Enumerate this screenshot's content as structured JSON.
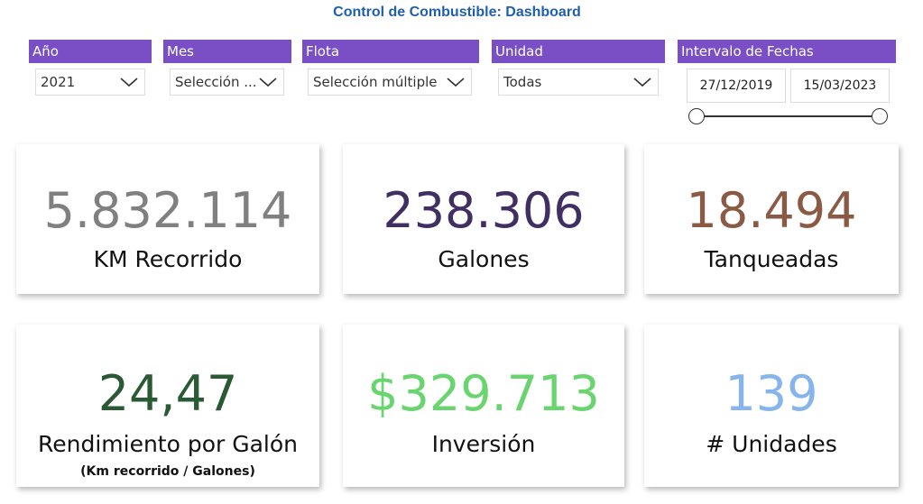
{
  "title": "Control de Combustible: Dashboard",
  "filters": {
    "anio": {
      "label": "Año",
      "value": "2021"
    },
    "mes": {
      "label": "Mes",
      "value": "Selección ..."
    },
    "flota": {
      "label": "Flota",
      "value": "Selección múltiple"
    },
    "unidad": {
      "label": "Unidad",
      "value": "Todas"
    },
    "intervalo": {
      "label": "Intervalo de Fechas",
      "start": "27/12/2019",
      "end": "15/03/2023",
      "range_fraction": [
        0,
        1
      ]
    }
  },
  "kpis": {
    "km": {
      "value": "5.832.114",
      "label": "KM Recorrido",
      "color": "#808080"
    },
    "galones": {
      "value": "238.306",
      "label": "Galones",
      "color": "#3f2f63"
    },
    "tanqueadas": {
      "value": "18.494",
      "label": "Tanqueadas",
      "color": "#8a5a44"
    },
    "rendimiento": {
      "value": "24,47",
      "label": "Rendimiento por Galón",
      "sublabel": "(Km recorrido / Galones)",
      "color": "#2a5a34"
    },
    "inversion": {
      "value": "$329.713",
      "label": "Inversión",
      "color": "#6ad46e"
    },
    "unidades": {
      "value": "139",
      "label": "# Unidades",
      "color": "#86b4ec"
    }
  },
  "colors": {
    "slicer_header": "#7a4fc6",
    "title": "#1f5fae"
  }
}
